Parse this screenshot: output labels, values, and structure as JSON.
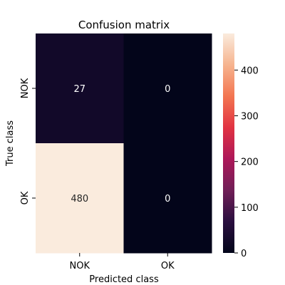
{
  "chart_data": {
    "type": "heatmap",
    "title": "Confusion matrix",
    "xlabel": "Predicted class",
    "ylabel": "True class",
    "x_categories": [
      "NOK",
      "OK"
    ],
    "y_categories": [
      "NOK",
      "OK"
    ],
    "values": [
      [
        27,
        0
      ],
      [
        480,
        0
      ]
    ],
    "cell_labels": [
      [
        "27",
        "0"
      ],
      [
        "480",
        "0"
      ]
    ],
    "colorbar": {
      "range": [
        0,
        480
      ],
      "ticks": [
        0,
        100,
        200,
        300,
        400
      ],
      "tick_labels": [
        "0",
        "100",
        "200",
        "300",
        "400"
      ],
      "colormap": "rocket",
      "stops": [
        "#03051a",
        "#2a0f3f",
        "#701f57",
        "#ad1759",
        "#e13342",
        "#f37651",
        "#f6b48f",
        "#faebdd"
      ]
    },
    "grid": false
  }
}
